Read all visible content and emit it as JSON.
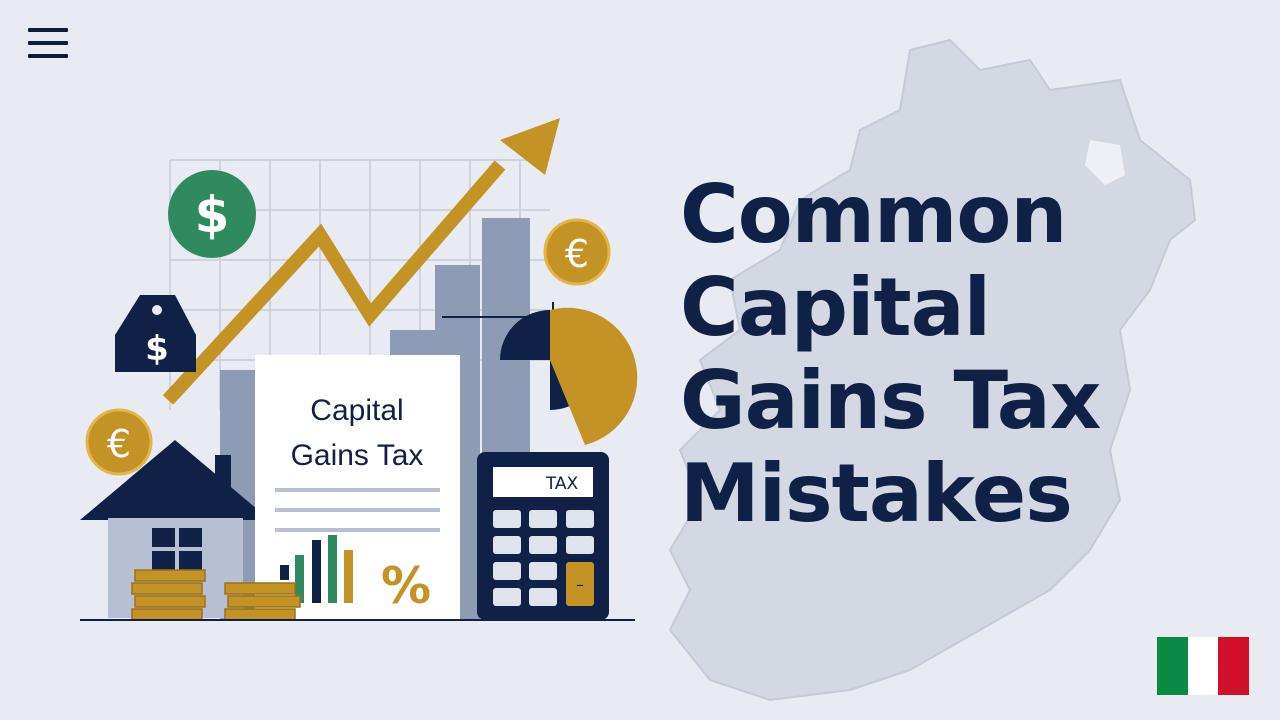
{
  "header": {
    "menu_icon": "hamburger-menu-icon"
  },
  "hero": {
    "title_lines": [
      "Common",
      "Capital",
      "Gains Tax",
      "Mistakes"
    ],
    "document_title_lines": [
      "Capital",
      "Gains Tax"
    ],
    "calculator_label": "TAX",
    "percent_symbol": "%",
    "dollar_symbol": "$",
    "euro_symbol": "€",
    "calculator_minus": "–"
  },
  "language": {
    "flag_icon": "italy-flag-icon",
    "colors": [
      "#0b8a43",
      "#ffffff",
      "#d0102a"
    ]
  },
  "colors": {
    "navy": "#0f2147",
    "gold": "#c39325",
    "green": "#2f8a5f",
    "slate": "#8e9bb5",
    "background": "#e9ebf2",
    "map": "#d4d8e3"
  }
}
